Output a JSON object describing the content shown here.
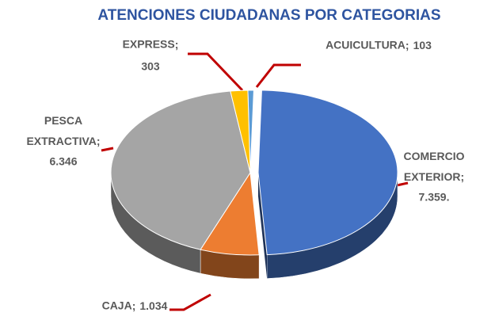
{
  "chart_data": {
    "type": "pie3d",
    "title": "ATENCIONES CIUDADANAS POR CATEGORIAS",
    "categories": [
      "ACUICULTURA",
      "COMERCIO EXTERIOR",
      "CAJA",
      "PESCA EXTRACTIVA",
      "EXPRESS"
    ],
    "values": [
      103,
      7359,
      1034,
      6346,
      303
    ],
    "value_labels": [
      "103",
      "7.359.",
      "1.034",
      "6.346",
      "303"
    ],
    "label_separator": ";",
    "colors": [
      "#5b9bd5",
      "#4472c4",
      "#ed7d31",
      "#a5a5a5",
      "#ffc000"
    ]
  }
}
